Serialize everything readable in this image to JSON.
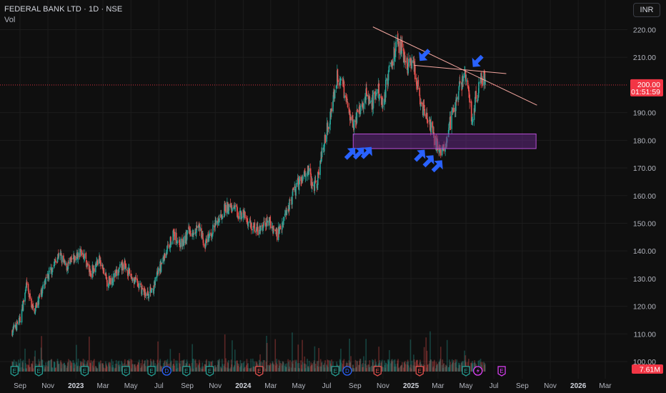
{
  "header": {
    "title": "FEDERAL BANK LTD · 1D · NSE",
    "volume_label": "Vol",
    "currency": "INR"
  },
  "colors": {
    "background": "#0f0f0f",
    "up": "#26a69a",
    "down": "#ef5350",
    "current_price": "#f23645",
    "trendline": "#f4a7a0",
    "zone_fill": "#6a2a8c",
    "zone_border": "#b84fd6",
    "arrow": "#2962ff",
    "earnings": "#26a69a",
    "earnings_red": "#ef5350",
    "dividend": "#2962ff",
    "split": "#e040fb"
  },
  "chart_data": {
    "type": "candlestick",
    "title": "FEDERAL BANK LTD · 1D · NSE",
    "ylim": [
      100,
      224
    ],
    "y_ticks": [
      "220.00",
      "210.00",
      "190.00",
      "180.00",
      "170.00",
      "160.00",
      "150.00",
      "140.00",
      "130.00",
      "120.00",
      "110.00",
      "100.00"
    ],
    "x_ticks": [
      {
        "label": "Sep",
        "date": "2022-09-01"
      },
      {
        "label": "Nov",
        "date": "2022-11-01"
      },
      {
        "label": "2023",
        "date": "2023-01-01",
        "bold": true
      },
      {
        "label": "Mar",
        "date": "2023-03-01"
      },
      {
        "label": "May",
        "date": "2023-05-01"
      },
      {
        "label": "Jul",
        "date": "2023-07-01"
      },
      {
        "label": "Sep",
        "date": "2023-09-01"
      },
      {
        "label": "Nov",
        "date": "2023-11-01"
      },
      {
        "label": "2024",
        "date": "2024-01-01",
        "bold": true
      },
      {
        "label": "Mar",
        "date": "2024-03-01"
      },
      {
        "label": "May",
        "date": "2024-05-01"
      },
      {
        "label": "Jul",
        "date": "2024-07-01"
      },
      {
        "label": "Sep",
        "date": "2024-09-01"
      },
      {
        "label": "Nov",
        "date": "2024-11-01"
      },
      {
        "label": "2025",
        "date": "2025-01-01",
        "bold": true
      },
      {
        "label": "Mar",
        "date": "2025-03-01"
      },
      {
        "label": "May",
        "date": "2025-05-01"
      },
      {
        "label": "Jul",
        "date": "2025-07-01"
      },
      {
        "label": "Sep",
        "date": "2025-09-01"
      },
      {
        "label": "Nov",
        "date": "2025-11-01"
      },
      {
        "label": "2026",
        "date": "2026-01-01",
        "bold": true
      },
      {
        "label": "Mar",
        "date": "2026-03-01"
      }
    ],
    "price_path": [
      [
        "2022-08-15",
        111
      ],
      [
        "2022-09-01",
        115
      ],
      [
        "2022-09-15",
        127
      ],
      [
        "2022-10-01",
        118
      ],
      [
        "2022-10-20",
        126
      ],
      [
        "2022-11-05",
        132
      ],
      [
        "2022-11-25",
        139
      ],
      [
        "2022-12-10",
        134
      ],
      [
        "2022-12-28",
        137
      ],
      [
        "2023-01-15",
        140
      ],
      [
        "2023-02-01",
        132
      ],
      [
        "2023-02-20",
        137
      ],
      [
        "2023-03-10",
        129
      ],
      [
        "2023-03-28",
        131
      ],
      [
        "2023-04-15",
        135
      ],
      [
        "2023-05-01",
        131
      ],
      [
        "2023-05-20",
        127
      ],
      [
        "2023-06-05",
        124
      ],
      [
        "2023-06-20",
        127
      ],
      [
        "2023-07-01",
        133
      ],
      [
        "2023-07-15",
        139
      ],
      [
        "2023-08-01",
        146
      ],
      [
        "2023-08-20",
        142
      ],
      [
        "2023-09-05",
        147
      ],
      [
        "2023-09-25",
        149
      ],
      [
        "2023-10-10",
        142
      ],
      [
        "2023-10-25",
        147
      ],
      [
        "2023-11-10",
        152
      ],
      [
        "2023-11-25",
        156
      ],
      [
        "2023-12-10",
        155
      ],
      [
        "2024-01-01",
        153
      ],
      [
        "2024-01-20",
        149
      ],
      [
        "2024-02-05",
        147
      ],
      [
        "2024-02-25",
        151
      ],
      [
        "2024-03-15",
        146
      ],
      [
        "2024-04-01",
        153
      ],
      [
        "2024-04-20",
        161
      ],
      [
        "2024-05-05",
        166
      ],
      [
        "2024-05-20",
        170
      ],
      [
        "2024-05-31",
        163
      ],
      [
        "2024-06-10",
        165
      ],
      [
        "2024-06-25",
        179
      ],
      [
        "2024-07-10",
        190
      ],
      [
        "2024-07-25",
        204
      ],
      [
        "2024-08-05",
        200
      ],
      [
        "2024-08-20",
        190
      ],
      [
        "2024-08-30",
        186
      ],
      [
        "2024-09-10",
        190
      ],
      [
        "2024-09-25",
        197
      ],
      [
        "2024-10-05",
        192
      ],
      [
        "2024-10-20",
        198
      ],
      [
        "2024-11-01",
        194
      ],
      [
        "2024-11-15",
        206
      ],
      [
        "2024-11-28",
        213
      ],
      [
        "2024-12-10",
        215
      ],
      [
        "2024-12-25",
        206
      ],
      [
        "2025-01-05",
        208
      ],
      [
        "2025-01-15",
        200
      ],
      [
        "2025-01-28",
        191
      ],
      [
        "2025-02-10",
        186
      ],
      [
        "2025-02-25",
        179
      ],
      [
        "2025-03-05",
        176
      ],
      [
        "2025-03-18",
        180
      ],
      [
        "2025-04-01",
        189
      ],
      [
        "2025-04-15",
        197
      ],
      [
        "2025-04-28",
        204
      ],
      [
        "2025-05-08",
        198
      ],
      [
        "2025-05-15",
        186
      ],
      [
        "2025-05-22",
        195
      ],
      [
        "2025-06-05",
        201
      ],
      [
        "2025-06-12",
        203
      ]
    ],
    "current_price": 200.0,
    "current_price_label": "200.00",
    "countdown_label": "01:51:59",
    "volume_label": "7.61M",
    "trendlines": [
      {
        "from": [
          "2024-10-10",
          221
        ],
        "to": [
          "2025-10-03",
          192.7
        ]
      },
      {
        "from": [
          "2025-01-08",
          207.1
        ],
        "to": [
          "2025-07-28",
          204.1
        ]
      }
    ],
    "support_zone": {
      "x_range": [
        "2024-08-28",
        "2025-10-01"
      ],
      "y_range": [
        177,
        182.3
      ]
    },
    "arrows": [
      {
        "date": "2024-09-01",
        "price": 177.3,
        "direction": "up-right"
      },
      {
        "date": "2024-09-20",
        "price": 177.4,
        "direction": "up-right"
      },
      {
        "date": "2024-10-07",
        "price": 177.6,
        "direction": "up-right"
      },
      {
        "date": "2025-01-31",
        "price": 176.6,
        "direction": "up-right"
      },
      {
        "date": "2025-02-19",
        "price": 174.6,
        "direction": "up-right"
      },
      {
        "date": "2025-03-10",
        "price": 172.8,
        "direction": "up-right"
      },
      {
        "date": "2025-01-20",
        "price": 208.7,
        "direction": "down-left"
      },
      {
        "date": "2025-05-16",
        "price": 206.5,
        "direction": "down-left"
      }
    ],
    "events": [
      {
        "date": "2022-08-20",
        "type": "E"
      },
      {
        "date": "2022-10-12",
        "type": "E"
      },
      {
        "date": "2023-01-20",
        "type": "E"
      },
      {
        "date": "2023-04-20",
        "type": "E"
      },
      {
        "date": "2023-06-15",
        "type": "E"
      },
      {
        "date": "2023-07-18",
        "type": "D"
      },
      {
        "date": "2023-08-30",
        "type": "E"
      },
      {
        "date": "2023-10-20",
        "type": "E"
      },
      {
        "date": "2024-02-05",
        "type": "E",
        "variant": "red"
      },
      {
        "date": "2024-07-20",
        "type": "E"
      },
      {
        "date": "2024-08-15",
        "type": "D"
      },
      {
        "date": "2024-10-20",
        "type": "E",
        "variant": "red"
      },
      {
        "date": "2025-01-20",
        "type": "E",
        "variant": "red"
      },
      {
        "date": "2025-05-01",
        "type": "E"
      },
      {
        "date": "2025-05-27",
        "type": "S"
      },
      {
        "date": "2025-07-18",
        "type": "E",
        "variant": "outline"
      }
    ]
  }
}
